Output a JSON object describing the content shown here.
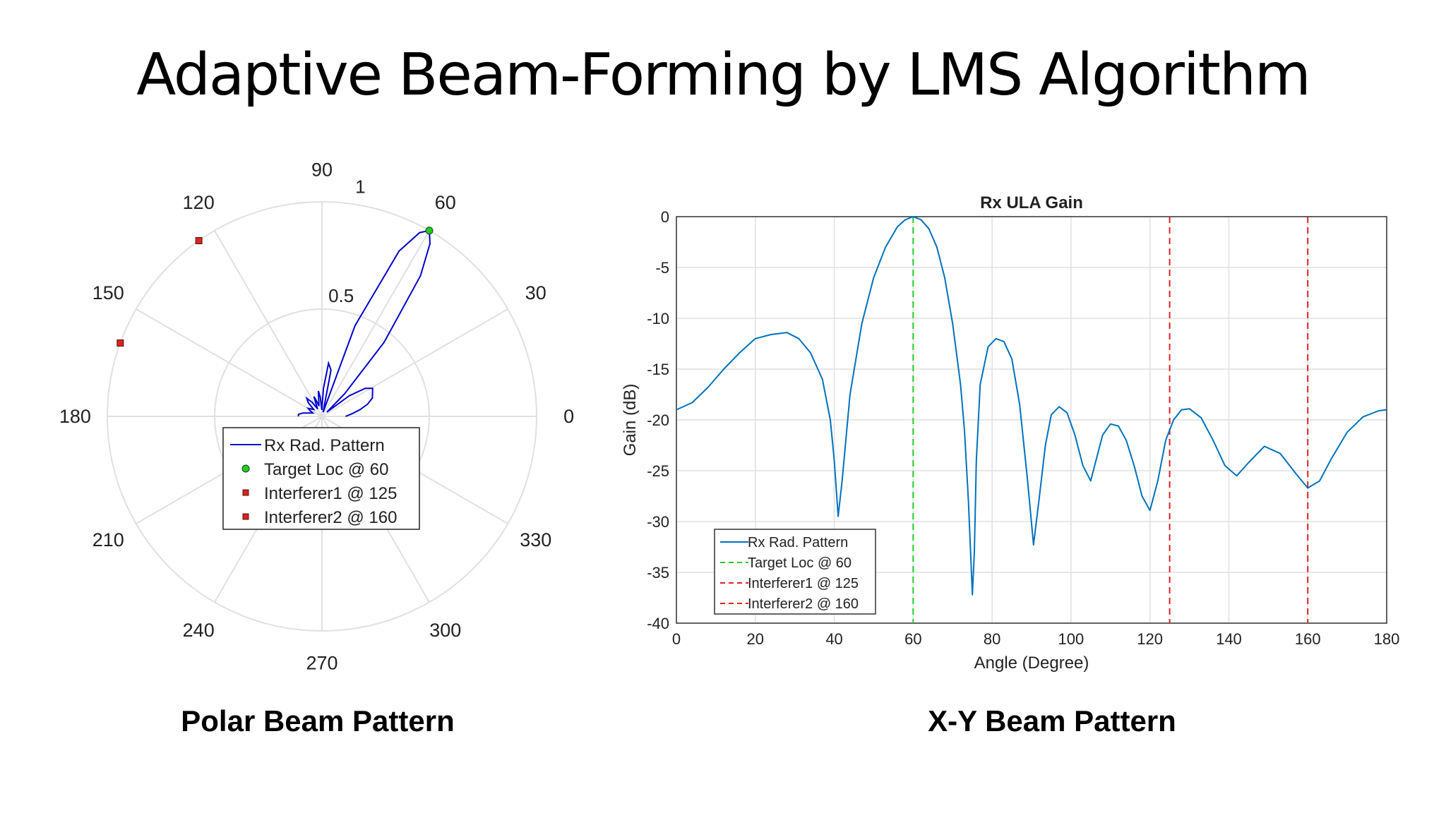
{
  "slide": {
    "title": "Adaptive Beam-Forming by LMS Algorithm",
    "caption_polar": "Polar Beam Pattern",
    "caption_xy": "X-Y Beam Pattern"
  },
  "colors": {
    "polar_pattern": "#0000cc",
    "xy_pattern": "#0072bd",
    "target": "#22cc22",
    "interferer": "#dd2222",
    "grid": "#e0e0e0"
  },
  "chart_data": [
    {
      "type": "polar",
      "angle_labels": [
        "0",
        "30",
        "60",
        "90",
        "120",
        "150",
        "180",
        "210",
        "240",
        "270",
        "300",
        "330"
      ],
      "radial_labels": [
        "0.5",
        "1"
      ],
      "rlim": [
        0,
        1
      ],
      "legend_placement": "center-lower",
      "legend": [
        "Rx Rad. Pattern",
        "Target Loc @ 60",
        "Interferer1 @  125",
        "Interferer2 @ 160"
      ],
      "markers": [
        {
          "name": "Target Loc @ 60",
          "theta": 60,
          "r": 1.0,
          "shape": "circle",
          "color": "#22cc22"
        },
        {
          "name": "Interferer1 @  125",
          "theta": 125,
          "r": 1.0,
          "shape": "square",
          "color": "#dd2222"
        },
        {
          "name": "Interferer2 @ 160",
          "theta": 160,
          "r": 1.0,
          "shape": "square",
          "color": "#dd2222"
        }
      ],
      "series": [
        {
          "name": "Rx Rad. Pattern",
          "theta": [
            0,
            5,
            10,
            15,
            20,
            25,
            29,
            33,
            37,
            41,
            45,
            50,
            55,
            58,
            60,
            62,
            65,
            70,
            75,
            79,
            83,
            87,
            91,
            95,
            98,
            101,
            106,
            110,
            112,
            116,
            120,
            125,
            130,
            135,
            140,
            145,
            150,
            155,
            160,
            165,
            170,
            175,
            180
          ],
          "r": [
            0.11,
            0.14,
            0.18,
            0.22,
            0.25,
            0.26,
            0.27,
            0.24,
            0.16,
            0.03,
            0.15,
            0.45,
            0.8,
            0.95,
            1.0,
            0.97,
            0.85,
            0.45,
            0.02,
            0.22,
            0.25,
            0.13,
            0.03,
            0.09,
            0.12,
            0.08,
            0.05,
            0.08,
            0.1,
            0.06,
            0.04,
            0.08,
            0.11,
            0.09,
            0.05,
            0.06,
            0.075,
            0.06,
            0.045,
            0.06,
            0.09,
            0.11,
            0.11
          ]
        }
      ]
    },
    {
      "type": "line",
      "title": "Rx ULA Gain",
      "xlabel": "Angle (Degree)",
      "ylabel": "Gain (dB)",
      "xlim": [
        0,
        180
      ],
      "ylim": [
        -40,
        0
      ],
      "xticks": [
        0,
        20,
        40,
        60,
        80,
        100,
        120,
        140,
        160,
        180
      ],
      "yticks": [
        0,
        -5,
        -10,
        -15,
        -20,
        -25,
        -30,
        -35,
        -40
      ],
      "grid": true,
      "legend_placement": "bottom-left",
      "series": [
        {
          "name": "Rx Rad. Pattern",
          "x": [
            0,
            4,
            8,
            12,
            16,
            20,
            24,
            28,
            31,
            34,
            37,
            39,
            40,
            41,
            42,
            44,
            47,
            50,
            53,
            56,
            58,
            60,
            62,
            64,
            66,
            68,
            70,
            72,
            73,
            74,
            75,
            75.5,
            76,
            77,
            79,
            81,
            83,
            85,
            87,
            89,
            90.5,
            92,
            93.5,
            95,
            97,
            99,
            101,
            103,
            105,
            106,
            108,
            110,
            112,
            114,
            116,
            118,
            120,
            122,
            124,
            126,
            128,
            130,
            133,
            136,
            139,
            142,
            145,
            149,
            153,
            157,
            160,
            163,
            166,
            170,
            174,
            178,
            180
          ],
          "y": [
            -19.0,
            -18.3,
            -16.8,
            -15.0,
            -13.4,
            -12.0,
            -11.6,
            -11.4,
            -12.0,
            -13.4,
            -16.0,
            -20.0,
            -24.0,
            -29.5,
            -26.0,
            -17.5,
            -10.5,
            -6.0,
            -3.0,
            -1.0,
            -0.3,
            0.0,
            -0.3,
            -1.2,
            -3.0,
            -6.0,
            -10.5,
            -16.5,
            -21.0,
            -28.0,
            -37.2,
            -33.0,
            -24.0,
            -16.5,
            -12.8,
            -12.0,
            -12.3,
            -14.0,
            -18.5,
            -26.0,
            -32.3,
            -27.5,
            -22.5,
            -19.5,
            -18.7,
            -19.3,
            -21.5,
            -24.5,
            -26.0,
            -24.5,
            -21.5,
            -20.4,
            -20.6,
            -22.0,
            -24.5,
            -27.5,
            -28.9,
            -26.0,
            -22.0,
            -20.0,
            -19.0,
            -18.9,
            -19.8,
            -22.0,
            -24.5,
            -25.5,
            -24.2,
            -22.6,
            -23.3,
            -25.3,
            -26.7,
            -26.0,
            -23.8,
            -21.2,
            -19.7,
            -19.1,
            -19.0
          ]
        },
        {
          "name": "Target Loc @ 60",
          "x": [
            60,
            60
          ],
          "y": [
            0,
            -40
          ],
          "color": "#22cc22",
          "dashed": true
        },
        {
          "name": "Interferer1 @  125",
          "x": [
            125,
            125
          ],
          "y": [
            0,
            -40
          ],
          "color": "#dd2222",
          "dashed": true
        },
        {
          "name": "Interferer2 @ 160",
          "x": [
            160,
            160
          ],
          "y": [
            0,
            -40
          ],
          "color": "#dd2222",
          "dashed": true
        }
      ]
    }
  ]
}
